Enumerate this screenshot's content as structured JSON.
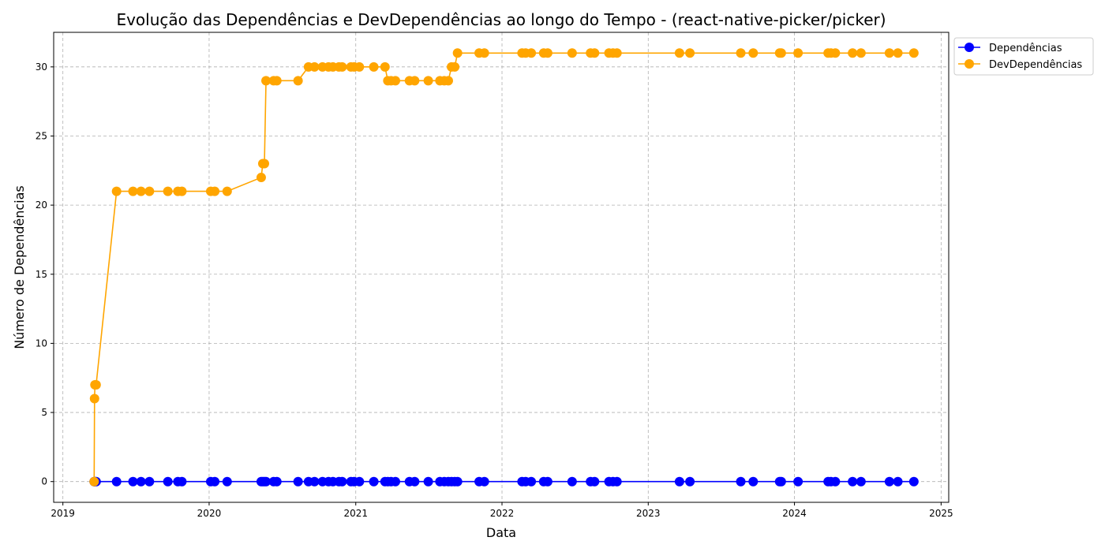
{
  "chart_data": {
    "type": "line",
    "title": "Evolução das Dependências e DevDependências ao longo do Tempo - (react-native-picker/picker)",
    "xlabel": "Data",
    "ylabel": "Número de Dependências",
    "xlim": [
      "2018-12-09",
      "2025-01-20"
    ],
    "ylim": [
      -1.5,
      32.5
    ],
    "xticks": [
      {
        "date": "2019-01-01",
        "label": "2019"
      },
      {
        "date": "2020-01-01",
        "label": "2020"
      },
      {
        "date": "2021-01-01",
        "label": "2021"
      },
      {
        "date": "2022-01-01",
        "label": "2022"
      },
      {
        "date": "2023-01-01",
        "label": "2023"
      },
      {
        "date": "2024-01-01",
        "label": "2024"
      },
      {
        "date": "2025-01-01",
        "label": "2025"
      }
    ],
    "yticks": [
      0,
      5,
      10,
      15,
      20,
      25,
      30
    ],
    "grid": true,
    "legend_position": "upper-right-outside",
    "x": [
      "2019-03-20",
      "2019-03-21",
      "2019-03-22",
      "2019-03-25",
      "2019-05-15",
      "2019-06-25",
      "2019-07-15",
      "2019-08-05",
      "2019-09-20",
      "2019-10-15",
      "2019-10-25",
      "2020-01-05",
      "2020-01-15",
      "2020-02-15",
      "2020-05-10",
      "2020-05-14",
      "2020-05-18",
      "2020-05-22",
      "2020-06-10",
      "2020-06-18",
      "2020-08-10",
      "2020-09-05",
      "2020-09-20",
      "2020-10-10",
      "2020-10-25",
      "2020-11-05",
      "2020-11-20",
      "2020-11-28",
      "2020-12-20",
      "2020-12-28",
      "2021-01-10",
      "2021-02-15",
      "2021-03-15",
      "2021-03-22",
      "2021-03-30",
      "2021-04-10",
      "2021-05-15",
      "2021-05-28",
      "2021-07-01",
      "2021-07-30",
      "2021-08-10",
      "2021-08-20",
      "2021-08-28",
      "2021-09-05",
      "2021-09-12",
      "2021-11-05",
      "2021-11-18",
      "2022-02-20",
      "2022-03-01",
      "2022-03-15",
      "2022-04-15",
      "2022-04-25",
      "2022-06-25",
      "2022-08-10",
      "2022-08-20",
      "2022-09-25",
      "2022-10-05",
      "2022-10-15",
      "2023-03-20",
      "2023-04-15",
      "2023-08-20",
      "2023-09-20",
      "2023-11-25",
      "2023-11-29",
      "2024-01-10",
      "2024-03-25",
      "2024-04-01",
      "2024-04-12",
      "2024-05-25",
      "2024-06-15",
      "2024-08-25",
      "2024-09-15",
      "2024-10-25"
    ],
    "series": [
      {
        "name": "Dependências",
        "color": "#0000ff",
        "values": [
          0,
          0,
          0,
          0,
          0,
          0,
          0,
          0,
          0,
          0,
          0,
          0,
          0,
          0,
          0,
          0,
          0,
          0,
          0,
          0,
          0,
          0,
          0,
          0,
          0,
          0,
          0,
          0,
          0,
          0,
          0,
          0,
          0,
          0,
          0,
          0,
          0,
          0,
          0,
          0,
          0,
          0,
          0,
          0,
          0,
          0,
          0,
          0,
          0,
          0,
          0,
          0,
          0,
          0,
          0,
          0,
          0,
          0,
          0,
          0,
          0,
          0,
          0,
          0,
          0,
          0,
          0,
          0,
          0,
          0,
          0,
          0,
          0
        ]
      },
      {
        "name": "DevDependências",
        "color": "#ffa500",
        "values": [
          0,
          6,
          7,
          7,
          21,
          21,
          21,
          21,
          21,
          21,
          21,
          21,
          21,
          21,
          22,
          23,
          23,
          29,
          29,
          29,
          29,
          30,
          30,
          30,
          30,
          30,
          30,
          30,
          30,
          30,
          30,
          30,
          30,
          29,
          29,
          29,
          29,
          29,
          29,
          29,
          29,
          29,
          30,
          30,
          31,
          31,
          31,
          31,
          31,
          31,
          31,
          31,
          31,
          31,
          31,
          31,
          31,
          31,
          31,
          31,
          31,
          31,
          31,
          31,
          31,
          31,
          31,
          31,
          31,
          31,
          31,
          31,
          31
        ]
      }
    ]
  }
}
